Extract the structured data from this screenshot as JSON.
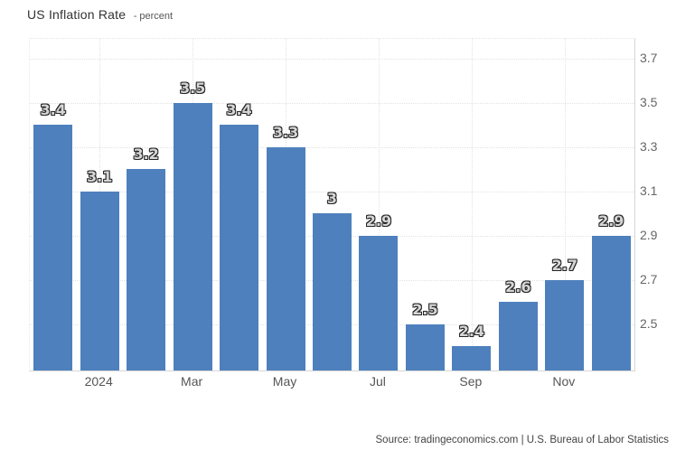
{
  "title": {
    "main": "US Inflation Rate",
    "suffix": "- percent"
  },
  "footer": {
    "source": "Source: tradingeconomics.com | U.S. Bureau of Labor Statistics"
  },
  "colors": {
    "bar": "#4e80bd",
    "grid": "#e2e2e2",
    "axis_line": "#d6d6d6",
    "bar_label_fill": "#d6d6d6",
    "bar_label_outline": "#262626",
    "tick_text": "#666666",
    "title_text": "#333333"
  },
  "chart_data": {
    "type": "bar",
    "title": "US Inflation Rate",
    "subtitle": "percent",
    "values": [
      3.4,
      3.1,
      3.2,
      3.5,
      3.4,
      3.3,
      3.0,
      2.9,
      2.5,
      2.4,
      2.6,
      2.7,
      2.9
    ],
    "bar_labels": [
      "3.4",
      "3.1",
      "3.2",
      "3.5",
      "3.4",
      "3.3",
      "3",
      "2.9",
      "2.5",
      "2.4",
      "2.6",
      "2.7",
      "2.9"
    ],
    "x_ticks": [
      {
        "index": 1,
        "label": "2024"
      },
      {
        "index": 3,
        "label": "Mar"
      },
      {
        "index": 5,
        "label": "May"
      },
      {
        "index": 7,
        "label": "Jul"
      },
      {
        "index": 9,
        "label": "Sep"
      },
      {
        "index": 11,
        "label": "Nov"
      }
    ],
    "y_ticks": [
      3.7,
      3.5,
      3.3,
      3.1,
      2.9,
      2.7,
      2.5
    ],
    "ylim": [
      2.29,
      3.79
    ],
    "grid": true,
    "legend": false,
    "y_axis_side": "right"
  }
}
